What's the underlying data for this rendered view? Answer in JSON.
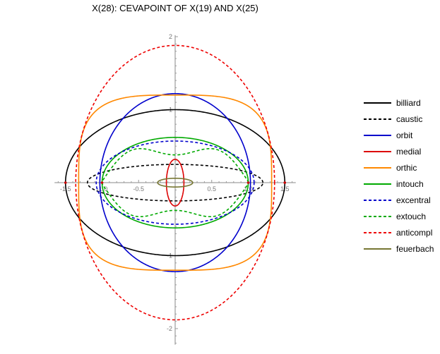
{
  "chart_data": {
    "type": "line",
    "title": "X(28): CEVAPOINT OF X(19) AND X(25)",
    "xlabel": "",
    "ylabel": "",
    "xlim": [
      -1.65,
      1.65
    ],
    "ylim": [
      -2.22,
      2.02
    ],
    "grid": false,
    "legend_position": "right",
    "x_ticks": [
      {
        "value": -1.5,
        "label": "-1.5"
      },
      {
        "value": -1.0,
        "label": "-1.0"
      },
      {
        "value": -0.5,
        "label": "-0.5"
      },
      {
        "value": 0.5,
        "label": "0.5"
      },
      {
        "value": 1.0,
        "label": "1.0"
      },
      {
        "value": 1.5,
        "label": "1.5"
      }
    ],
    "y_ticks": [
      {
        "value": 2,
        "label": "2"
      },
      {
        "value": 1,
        "label": "1"
      },
      {
        "value": -1,
        "label": "-1"
      },
      {
        "value": -2,
        "label": "-2"
      }
    ],
    "series": [
      {
        "name": "billiard",
        "color": "#000000",
        "dash": "solid",
        "shape": "ellipse",
        "a": 1.5,
        "b": 1.0
      },
      {
        "name": "caustic",
        "color": "#000000",
        "dash": "dashed",
        "shape": "ellipse",
        "a": 1.2,
        "b": 0.25
      },
      {
        "name": "orbit",
        "color": "#0000cc",
        "dash": "solid",
        "shape": "ellipse",
        "a": 1.03,
        "b": 1.22
      },
      {
        "name": "medial",
        "color": "#dd0000",
        "dash": "solid",
        "shape": "ellipse",
        "a": 0.12,
        "b": 0.32
      },
      {
        "name": "orthic",
        "color": "#ff8800",
        "dash": "solid",
        "shape": "superellipse",
        "a": 1.32,
        "b": 1.2,
        "n": 3.5
      },
      {
        "name": "intouch",
        "color": "#00aa00",
        "dash": "solid",
        "shape": "ellipse",
        "a": 1.0,
        "b": 0.62
      },
      {
        "name": "excentral",
        "color": "#0000cc",
        "dash": "dashed",
        "shape": "ellipse",
        "a": 1.08,
        "b": 0.57
      },
      {
        "name": "extouch",
        "color": "#00aa00",
        "dash": "dashed",
        "shape": "lobed",
        "a": 1.0,
        "b": 0.6,
        "b_lobe": 0.64,
        "b_dip": 0.38
      },
      {
        "name": "anticompl",
        "color": "#ee0000",
        "dash": "dashed",
        "shape": "ellipse",
        "a": 1.36,
        "b": 1.88
      },
      {
        "name": "feuerbach",
        "color": "#777733",
        "dash": "solid",
        "shape": "ellipse",
        "a": 0.24,
        "b": 0.06
      }
    ]
  }
}
